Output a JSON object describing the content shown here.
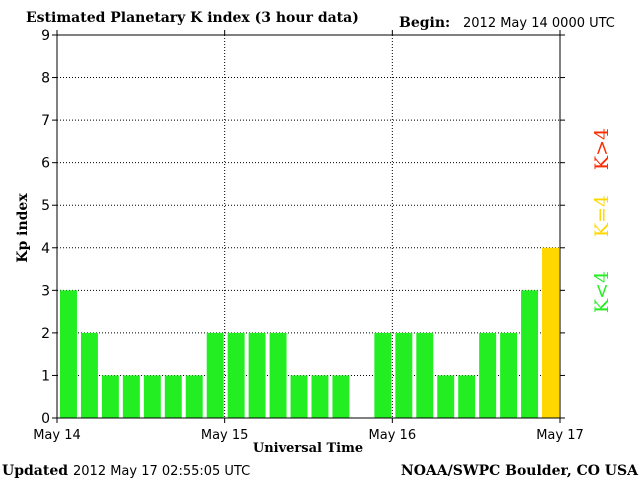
{
  "header": {
    "title": "Estimated Planetary K index (3 hour data)",
    "begin_label": "Begin:",
    "begin_value": "2012 May 14 0000 UTC"
  },
  "footer": {
    "updated_label": "Updated",
    "updated_value": "2012 May 17 02:55:05 UTC",
    "source": "NOAA/SWPC Boulder, CO USA"
  },
  "legend": {
    "gt4": "K>4",
    "eq4": "K=4",
    "lt4": "K<4"
  },
  "colors": {
    "lt4": "#22ee22",
    "eq4": "#ffd700",
    "gt4": "#ff2a00"
  },
  "chart_data": {
    "type": "bar",
    "title": "Estimated Planetary K index (3 hour data)",
    "xlabel": "Universal Time",
    "ylabel": "Kp index",
    "ylim": [
      0,
      9
    ],
    "yticks": [
      "0",
      "1",
      "2",
      "3",
      "4",
      "5",
      "6",
      "7",
      "8",
      "9"
    ],
    "xticks": [
      "May 14",
      "May 15",
      "May 16",
      "May 17"
    ],
    "values": [
      3,
      2,
      1,
      1,
      1,
      1,
      1,
      2,
      2,
      2,
      2,
      1,
      1,
      1,
      0,
      2,
      2,
      2,
      1,
      1,
      2,
      2,
      3,
      4
    ],
    "grid": true,
    "grid_style": "dotted"
  }
}
